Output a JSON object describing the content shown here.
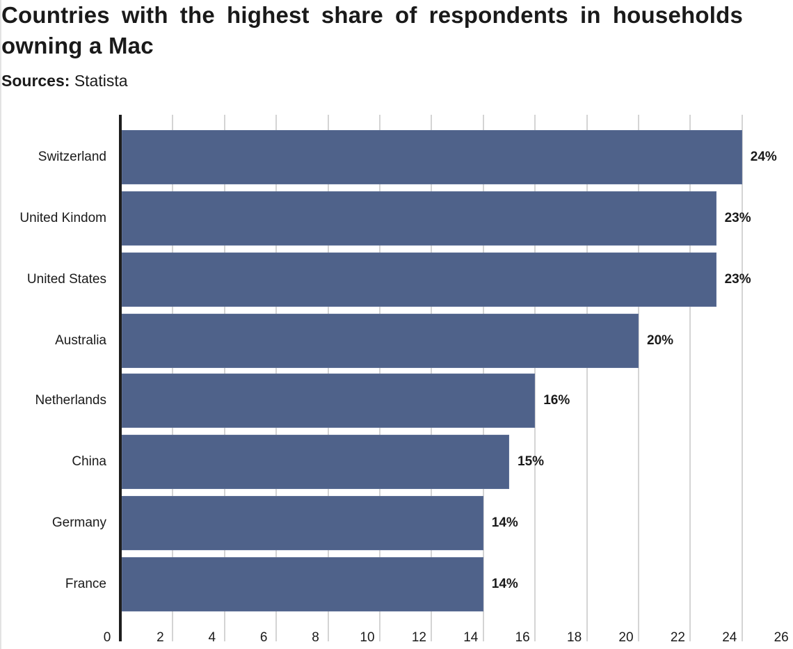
{
  "title": "Countries with the highest share of respondents in households owning a Mac",
  "source": {
    "label": "Sources:",
    "value": "Statista"
  },
  "colors": {
    "bar": "#4f628a",
    "axis": "#1e1e1e",
    "grid": "#d4d4d4",
    "text": "#1a1a1a"
  },
  "chart_data": {
    "type": "bar",
    "orientation": "horizontal",
    "title": "Countries with the highest share of respondents in households owning a Mac",
    "subtitle": "Sources: Statista",
    "categories": [
      "Switzerland",
      "United Kindom",
      "United States",
      "Australia",
      "Netherlands",
      "China",
      "Germany",
      "France"
    ],
    "values": [
      24,
      23,
      23,
      20,
      16,
      15,
      14,
      14
    ],
    "value_labels": [
      "24%",
      "23%",
      "23%",
      "20%",
      "16%",
      "15%",
      "14%",
      "14%"
    ],
    "xlabel": "",
    "ylabel": "",
    "xlim": [
      0,
      26
    ],
    "xticks": [
      "0",
      "2",
      "4",
      "6",
      "8",
      "10",
      "12",
      "14",
      "16",
      "18",
      "20",
      "22",
      "24",
      "26"
    ],
    "grid": true,
    "legend": "none"
  }
}
